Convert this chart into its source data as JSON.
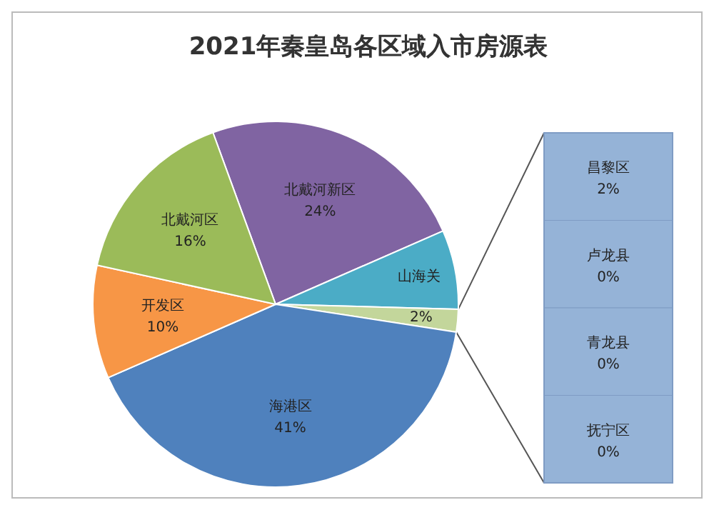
{
  "chart_data": [
    {
      "type": "pie",
      "title": "2021年秦皇岛各区域入市房源表",
      "categories": [
        "北戴河新区",
        "山海关",
        null,
        "海港区",
        "开发区",
        "北戴河区"
      ],
      "values": [
        24,
        7,
        2,
        41,
        10,
        16
      ],
      "colors": [
        "#8064a2",
        "#4bacc6",
        "#c3d69b",
        "#4f81bd",
        "#f79646",
        "#9bbb59"
      ],
      "value_labels": [
        "24%",
        null,
        "2%",
        "41%",
        "10%",
        "16%"
      ]
    },
    {
      "type": "other",
      "categories": [
        "昌黎区",
        "卢龙县",
        "青龙县",
        "抚宁区"
      ],
      "value_labels": [
        "2%",
        "0%",
        "0%",
        "0%"
      ],
      "color": "#95b3d7"
    }
  ]
}
